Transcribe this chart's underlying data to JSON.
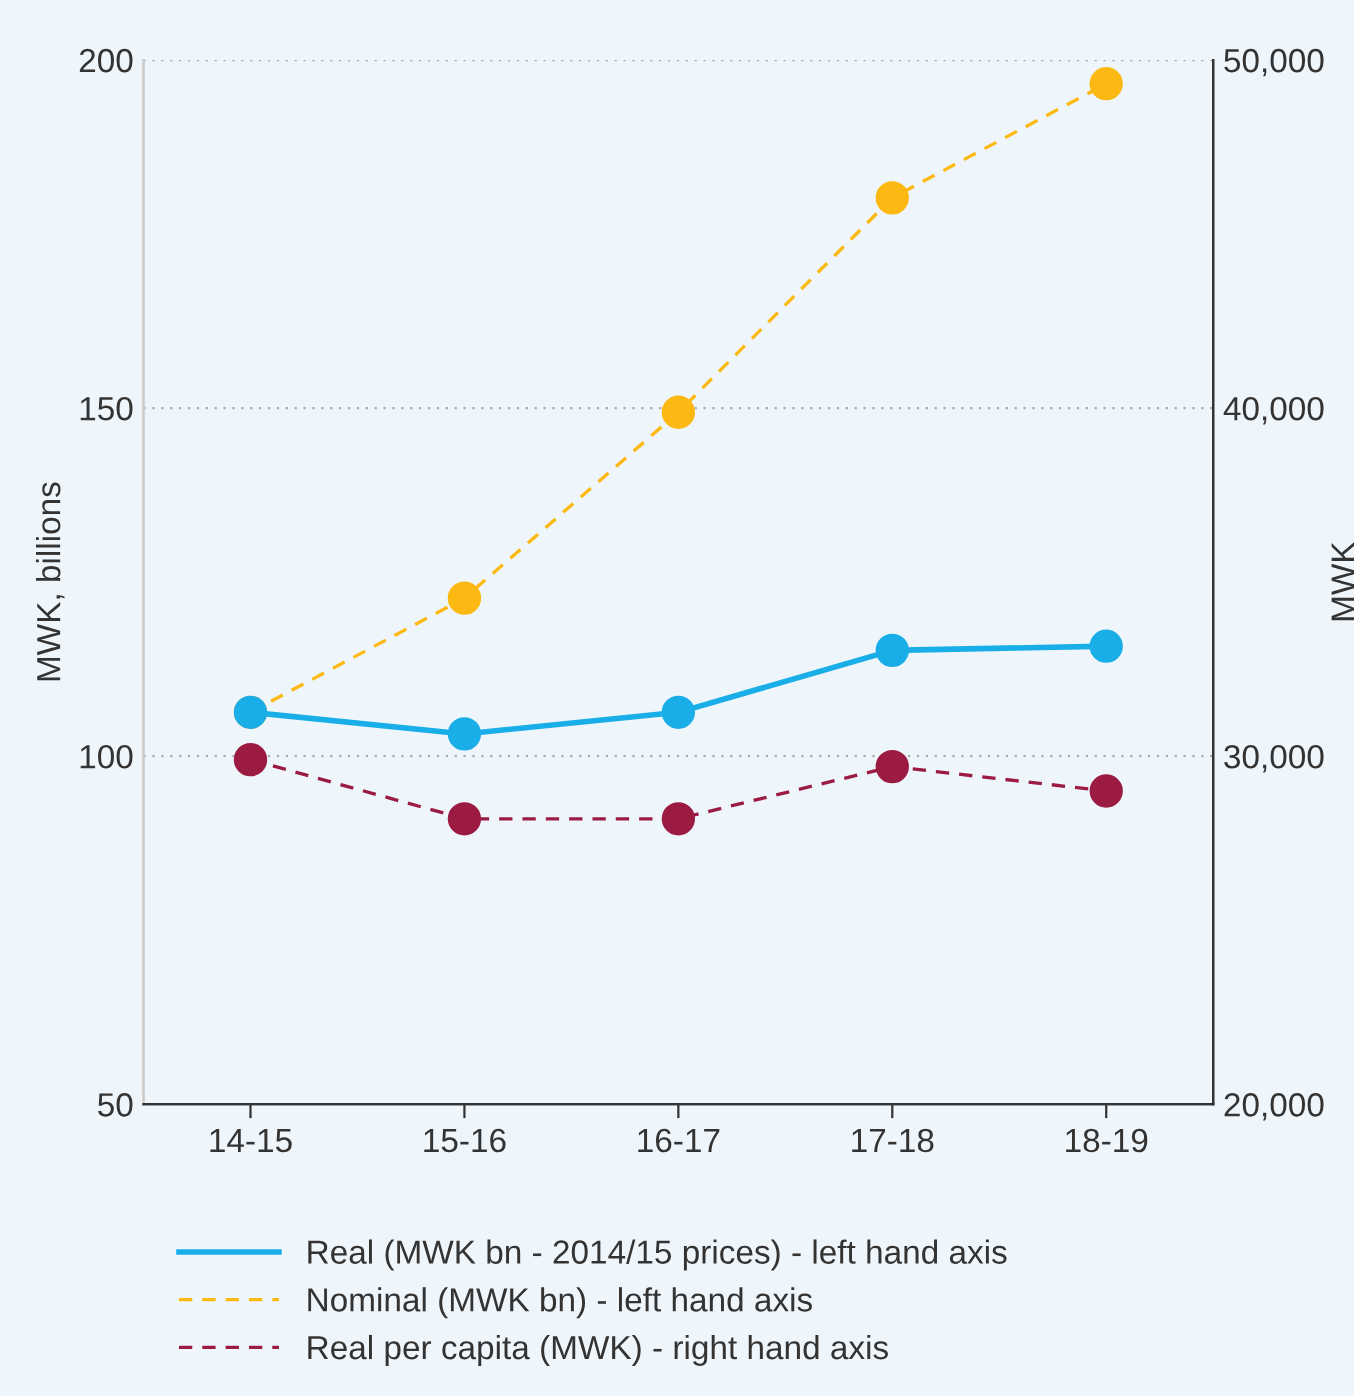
{
  "chart_data": {
    "type": "line",
    "categories": [
      "14-15",
      "15-16",
      "16-17",
      "17-18",
      "18-19"
    ],
    "ylabel": "MWK, billions",
    "y2label": "MWK",
    "ylim": [
      50,
      200
    ],
    "yticks": [
      50,
      100,
      150,
      200
    ],
    "y2lim": [
      20000,
      50000
    ],
    "y2ticks": [
      {
        "value": 20000,
        "label": "20,000"
      },
      {
        "value": 30000,
        "label": "30,000"
      },
      {
        "value": 40000,
        "label": "40,000"
      },
      {
        "value": 50000,
        "label": "50,000"
      }
    ],
    "grid": "y",
    "legend": "bottom",
    "marker": "circle",
    "series": [
      {
        "name": "Nominal (MWK bn) - left hand axis",
        "color": "#fdb913",
        "line_style": "dashed",
        "values": [
          106.3,
          122.7,
          149.4,
          180.2,
          196.6
        ]
      },
      {
        "name": "Real (MWK bn - 2014/15 prices) - left hand axis",
        "color": "#1aaee8",
        "line_style": "solid",
        "values": [
          106.3,
          103.2,
          106.3,
          115.2,
          115.8
        ]
      },
      {
        "name": "Real per capita (MWK) - right hand axis",
        "color": "#9b1b43",
        "line_style": "dashed",
        "axis": "y2",
        "values": [
          29900,
          28200,
          28200,
          29700,
          29000
        ]
      }
    ]
  }
}
